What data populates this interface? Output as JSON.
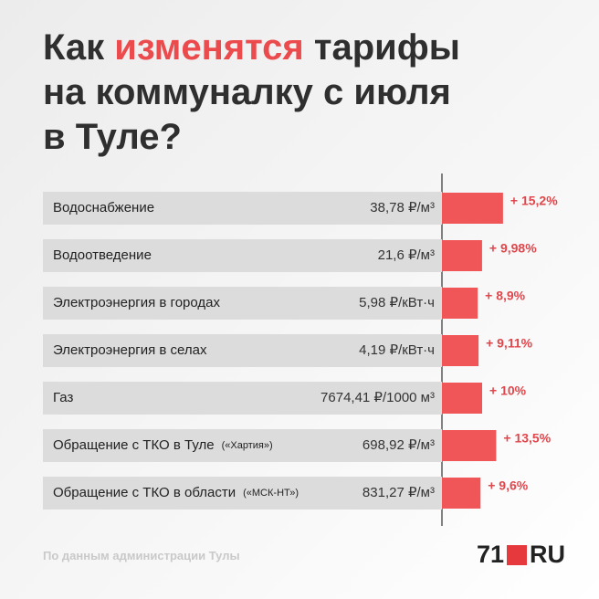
{
  "title": [
    "Как",
    "изменятся",
    "тарифы",
    "на коммуналку с июля",
    "в Туле?"
  ],
  "chart_data": {
    "type": "bar",
    "categories": [
      "Водоснабжение",
      "Водоотведение",
      "Электроэнергия в городах",
      "Электроэнергия в селах",
      "Газ",
      "Обращение с ТКО в Туле",
      "Обращение с ТКО в области"
    ],
    "notes": [
      null,
      null,
      null,
      null,
      null,
      "(«Хартия»)",
      "(«МСК-НТ»)"
    ],
    "tariffs": [
      "38,78 ₽/м³",
      "21,6 ₽/м³",
      "5,98 ₽/кВт·ч",
      "4,19 ₽/кВт·ч",
      "7674,41 ₽/1000 м³",
      "698,92 ₽/м³",
      "831,27 ₽/м³"
    ],
    "values": [
      15.2,
      9.98,
      8.9,
      9.11,
      10,
      13.5,
      9.6
    ],
    "value_labels": [
      "+ 15,2%",
      "+ 9,98%",
      "+ 8,9%",
      "+ 9,11%",
      "+ 10%",
      "+ 13,5%",
      "+ 9,6%"
    ],
    "color": "#f05557"
  },
  "source": "По данным администрации Тулы",
  "logo": [
    "71",
    "RU"
  ]
}
